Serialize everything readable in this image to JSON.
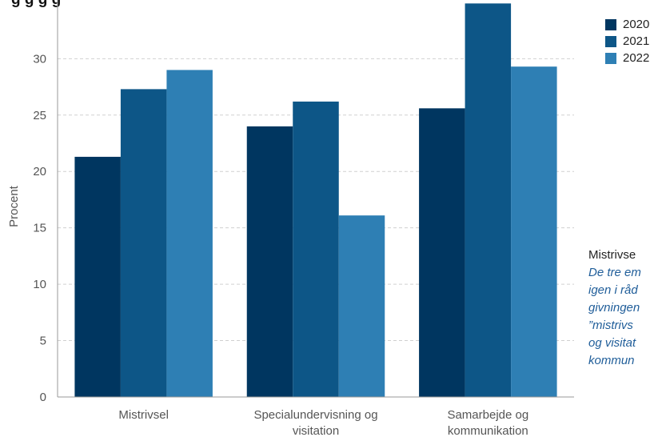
{
  "header": {
    "title_fragment": "g      g  g      g"
  },
  "colors": {
    "series": [
      "#003660",
      "#0d5687",
      "#2e7fb4"
    ],
    "grid": "#d0d0d0",
    "axis": "#999999",
    "tick_text": "#555555",
    "note_text": "#1f5d99"
  },
  "chart_data": {
    "type": "bar",
    "categories": [
      [
        "Mistrivsel"
      ],
      [
        "Specialundervisning og",
        "visitation"
      ],
      [
        "Samarbejde og",
        "kommunikation"
      ]
    ],
    "series": [
      {
        "name": "2020",
        "values": [
          21.3,
          24.0,
          25.6
        ]
      },
      {
        "name": "2021",
        "values": [
          27.3,
          26.2,
          34.9
        ]
      },
      {
        "name": "2022",
        "values": [
          29.0,
          16.1,
          29.3
        ]
      }
    ],
    "ylabel": "Procent",
    "ylim": [
      0,
      34
    ],
    "yticks": [
      0,
      5,
      10,
      15,
      20,
      25,
      30
    ],
    "grid": true,
    "legend": "top-right"
  },
  "side_note": {
    "heading": "Mistrivse",
    "lines": [
      "De tre em",
      "igen i råd",
      "givningen",
      "”mistrivs",
      "og visitat",
      "kommun"
    ]
  }
}
